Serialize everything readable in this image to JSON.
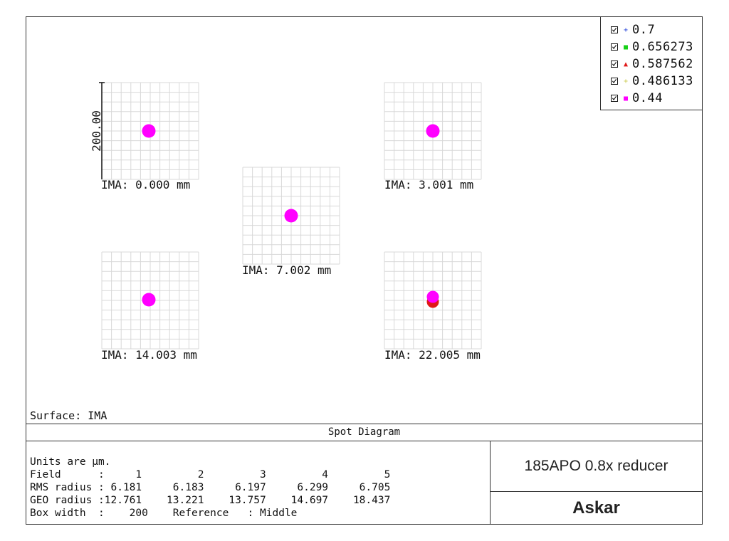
{
  "legend": {
    "items": [
      {
        "label": "0.7",
        "color": "#1b3bd8",
        "marker": "+"
      },
      {
        "label": "0.656273",
        "color": "#18d018",
        "marker": "■"
      },
      {
        "label": "0.587562",
        "color": "#e01818",
        "marker": "▲"
      },
      {
        "label": "0.486133",
        "color": "#c8c848",
        "marker": "+"
      },
      {
        "label": "0.44",
        "color": "#ff00ff",
        "marker": "■"
      }
    ]
  },
  "scale_label": "200.00",
  "fields": [
    {
      "label": "IMA: 0.000 mm"
    },
    {
      "label": "IMA: 7.002 mm"
    },
    {
      "label": "IMA: 3.001 mm"
    },
    {
      "label": "IMA: 14.003 mm"
    },
    {
      "label": "IMA: 22.005 mm"
    }
  ],
  "surface_label": "Surface: IMA",
  "diagram_title": "Spot Diagram",
  "info": {
    "units": "Units are µm.",
    "field_row": "Field      :     1         2         3         4         5",
    "rms_row": "RMS radius : 6.181     6.183     6.197     6.299     6.705",
    "geo_row": "GEO radius :12.761    13.221    13.757    14.697    18.437",
    "box_row": "Box width  :    200    Reference   : Middle"
  },
  "product": "185APO 0.8x reducer",
  "brand": "Askar"
}
